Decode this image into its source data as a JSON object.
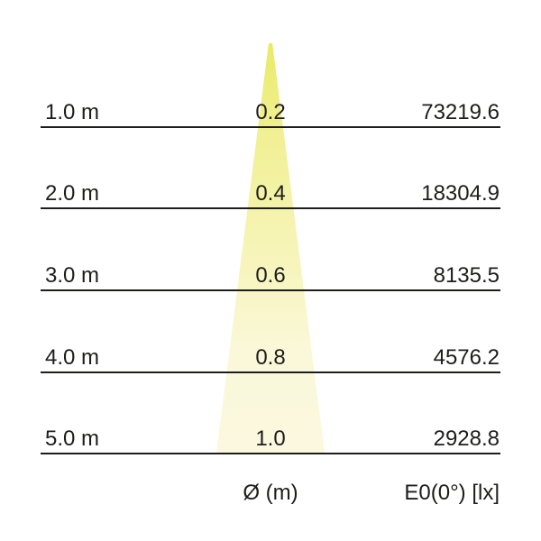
{
  "chart_data": {
    "type": "table",
    "title": "",
    "columns": [
      "",
      "Ø (m)",
      "E0(0°) [lx]"
    ],
    "rows": [
      [
        "1.0 m",
        "0.2",
        "73219.6"
      ],
      [
        "2.0 m",
        "0.4",
        "18304.9"
      ],
      [
        "3.0 m",
        "0.6",
        "8135.5"
      ],
      [
        "4.0 m",
        "0.8",
        "4576.2"
      ],
      [
        "5.0 m",
        "1.0",
        "2928.8"
      ]
    ],
    "units": {
      "distance": "m",
      "diameter": "m",
      "illuminance": "lx"
    }
  },
  "footer": {
    "diameter_label": "Ø (m)",
    "illuminance_label": "E0(0°) [lx]"
  },
  "colors": {
    "cone_top": "#e7eb62",
    "cone_mid": "#f6f4b4",
    "cone_bottom": "#fbf8e0",
    "line": "#1d1d1b",
    "text": "#1d1d1b",
    "background": "#ffffff"
  }
}
